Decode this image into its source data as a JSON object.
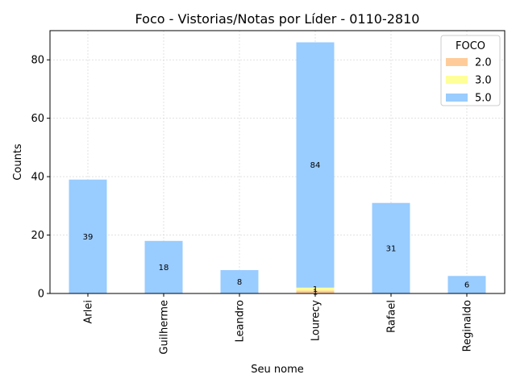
{
  "chart_data": {
    "type": "bar",
    "stacked": true,
    "title": "Foco - Vistorias/Notas por Líder - 0110-2810",
    "xlabel": "Seu nome",
    "ylabel": "Counts",
    "categories": [
      "Arlei",
      "Guilherme",
      "Leandro",
      "Lourecy",
      "Rafael",
      "Reginaldo"
    ],
    "series": [
      {
        "name": "2.0",
        "color": "#ffcc99",
        "values": [
          0,
          0,
          0,
          1,
          0,
          0
        ]
      },
      {
        "name": "3.0",
        "color": "#ffff99",
        "values": [
          0,
          0,
          0,
          1,
          0,
          0
        ]
      },
      {
        "name": "5.0",
        "color": "#99ccff",
        "values": [
          39,
          18,
          8,
          84,
          31,
          6
        ]
      }
    ],
    "ylim": [
      0,
      90
    ],
    "yticks": [
      0,
      20,
      40,
      60,
      80
    ],
    "grid": true,
    "legend": {
      "title": "FOCO",
      "placement": "top-right"
    }
  }
}
